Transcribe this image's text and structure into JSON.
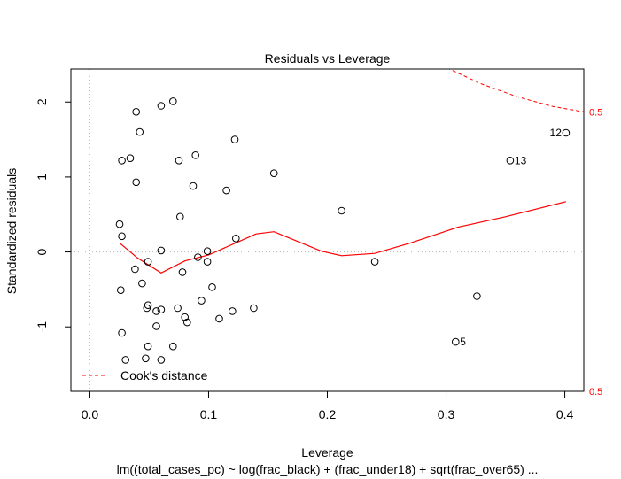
{
  "chart_data": {
    "type": "scatter",
    "title": "Residuals vs Leverage",
    "xlabel": "Leverage",
    "ylabel": "Standardized residuals",
    "subtitle": "lm((total_cases_pc) ~ log(frac_black) + (frac_under18) + sqrt(frac_over65)  ...",
    "xlim": [
      -0.016,
      0.416
    ],
    "ylim": [
      -1.86,
      2.44
    ],
    "x_ticks": [
      0.0,
      0.1,
      0.2,
      0.3,
      0.4
    ],
    "x_tick_labels": [
      "0.0",
      "0.1",
      "0.2",
      "0.3",
      "0.4"
    ],
    "y_ticks": [
      -1,
      0,
      1,
      2
    ],
    "y_tick_labels": [
      "-1",
      "0",
      "1",
      "2"
    ],
    "reference_lines": {
      "y": 0,
      "x": 0
    },
    "points": [
      {
        "x": 0.07,
        "y": 2.01
      },
      {
        "x": 0.06,
        "y": 1.95
      },
      {
        "x": 0.039,
        "y": 1.87
      },
      {
        "x": 0.042,
        "y": 1.6
      },
      {
        "x": 0.122,
        "y": 1.5
      },
      {
        "x": 0.089,
        "y": 1.29
      },
      {
        "x": 0.034,
        "y": 1.25
      },
      {
        "x": 0.027,
        "y": 1.22
      },
      {
        "x": 0.075,
        "y": 1.22
      },
      {
        "x": 0.155,
        "y": 1.05
      },
      {
        "x": 0.039,
        "y": 0.93
      },
      {
        "x": 0.087,
        "y": 0.88
      },
      {
        "x": 0.115,
        "y": 0.82
      },
      {
        "x": 0.212,
        "y": 0.55
      },
      {
        "x": 0.076,
        "y": 0.47
      },
      {
        "x": 0.025,
        "y": 0.37
      },
      {
        "x": 0.027,
        "y": 0.21
      },
      {
        "x": 0.123,
        "y": 0.18
      },
      {
        "x": 0.06,
        "y": 0.02
      },
      {
        "x": 0.099,
        "y": 0.01
      },
      {
        "x": 0.091,
        "y": -0.07
      },
      {
        "x": 0.049,
        "y": -0.13
      },
      {
        "x": 0.099,
        "y": -0.13
      },
      {
        "x": 0.24,
        "y": -0.13
      },
      {
        "x": 0.038,
        "y": -0.23
      },
      {
        "x": 0.078,
        "y": -0.27
      },
      {
        "x": 0.044,
        "y": -0.42
      },
      {
        "x": 0.103,
        "y": -0.47
      },
      {
        "x": 0.026,
        "y": -0.51
      },
      {
        "x": 0.326,
        "y": -0.59
      },
      {
        "x": 0.094,
        "y": -0.65
      },
      {
        "x": 0.049,
        "y": -0.71
      },
      {
        "x": 0.074,
        "y": -0.75
      },
      {
        "x": 0.048,
        "y": -0.75
      },
      {
        "x": 0.138,
        "y": -0.75
      },
      {
        "x": 0.06,
        "y": -0.77
      },
      {
        "x": 0.056,
        "y": -0.79
      },
      {
        "x": 0.12,
        "y": -0.79
      },
      {
        "x": 0.08,
        "y": -0.87
      },
      {
        "x": 0.109,
        "y": -0.89
      },
      {
        "x": 0.082,
        "y": -0.94
      },
      {
        "x": 0.056,
        "y": -0.99
      },
      {
        "x": 0.027,
        "y": -1.08
      },
      {
        "x": 0.049,
        "y": -1.26
      },
      {
        "x": 0.07,
        "y": -1.26
      },
      {
        "x": 0.047,
        "y": -1.42
      },
      {
        "x": 0.03,
        "y": -1.44
      },
      {
        "x": 0.06,
        "y": -1.44
      },
      {
        "x": 0.308,
        "y": -1.2,
        "label": "5"
      },
      {
        "x": 0.354,
        "y": 1.22,
        "label": "13"
      },
      {
        "x": 0.401,
        "y": 1.59,
        "label": "12"
      }
    ],
    "smoother": {
      "x": [
        0.025,
        0.04,
        0.06,
        0.08,
        0.1,
        0.12,
        0.14,
        0.155,
        0.175,
        0.195,
        0.212,
        0.24,
        0.27,
        0.31,
        0.35,
        0.401
      ],
      "y": [
        0.12,
        -0.08,
        -0.28,
        -0.12,
        -0.04,
        0.1,
        0.24,
        0.27,
        0.14,
        0.01,
        -0.05,
        -0.02,
        0.12,
        0.33,
        0.47,
        0.67
      ]
    },
    "cooks_distance": {
      "legend": "Cook's distance",
      "contours": [
        {
          "label": "0.5",
          "x": [
            0.296,
            0.33,
            0.36,
            0.39,
            0.416
          ],
          "y": [
            2.49,
            2.24,
            2.07,
            1.94,
            1.87
          ]
        }
      ],
      "right_labels": [
        {
          "text": "0.5",
          "y": 1.87
        },
        {
          "text": "0.5",
          "y": -1.86
        }
      ]
    },
    "colors": {
      "points": "#000000",
      "smoother": "#ff0000",
      "cooks": "#ff0000",
      "reference": "#bebebe"
    },
    "grid": false,
    "legend_position": "bottom-left"
  }
}
